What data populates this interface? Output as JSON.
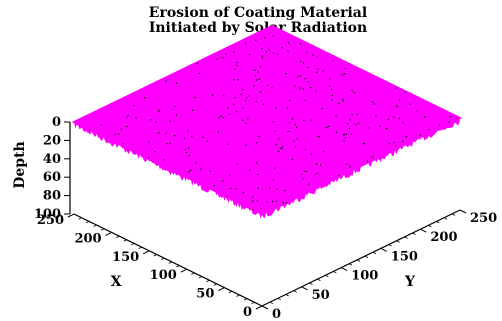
{
  "chart_data": {
    "type": "surface",
    "title": [
      "Erosion of Coating Material",
      "Initiated by Solar Radiation"
    ],
    "xlabel": "X",
    "ylabel": "Y",
    "zlabel": "Depth",
    "xlim": [
      0,
      250
    ],
    "ylim": [
      0,
      250
    ],
    "zlim": [
      0,
      100
    ],
    "x_ticks": [
      0,
      50,
      100,
      150,
      200,
      250
    ],
    "y_ticks": [
      0,
      50,
      100,
      150,
      200,
      250
    ],
    "z_ticks": [
      0,
      20,
      40,
      60,
      80,
      100
    ],
    "surface_depth": 0,
    "surface_color": "#ff00ff",
    "speckle_color": "#000000"
  }
}
